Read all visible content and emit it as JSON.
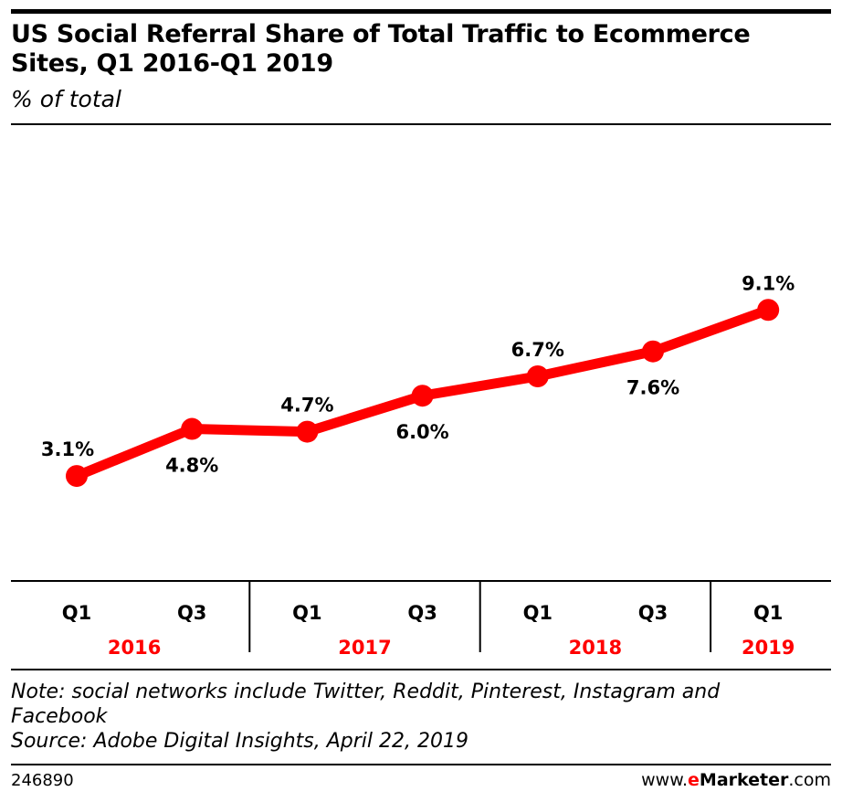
{
  "header": {
    "title": "US Social Referral Share of Total Traffic to Ecommerce Sites, Q1 2016-Q1 2019",
    "subtitle": "% of total"
  },
  "colors": {
    "accent": "#ff0000",
    "text": "#000000",
    "background": "#ffffff"
  },
  "chart_data": {
    "type": "line",
    "title": "US Social Referral Share of Total Traffic to Ecommerce Sites, Q1 2016-Q1 2019",
    "ylabel": "% of total",
    "xlabel": "",
    "categories": [
      "Q1",
      "Q3",
      "Q1",
      "Q3",
      "Q1",
      "Q3",
      "Q1"
    ],
    "year_groups": [
      {
        "year": "2016",
        "span": 2
      },
      {
        "year": "2017",
        "span": 2
      },
      {
        "year": "2018",
        "span": 2
      },
      {
        "year": "2019",
        "span": 1
      }
    ],
    "series": [
      {
        "name": "Social referral share",
        "values": [
          3.1,
          4.8,
          4.7,
          6.0,
          6.7,
          7.6,
          9.1
        ]
      }
    ],
    "data_labels": [
      "3.1%",
      "4.8%",
      "4.7%",
      "6.0%",
      "6.7%",
      "7.6%",
      "9.1%"
    ],
    "label_positions": [
      "above",
      "below",
      "above",
      "below",
      "above",
      "below",
      "above"
    ],
    "ylim": [
      0,
      10
    ],
    "grid": false,
    "legend": "none"
  },
  "footer": {
    "note": "Note: social networks include Twitter, Reddit, Pinterest, Instagram and Facebook",
    "source": "Source: Adobe Digital Insights, April 22, 2019",
    "chart_id": "246890",
    "brand_prefix": "www.",
    "brand_e": "e",
    "brand_name": "Marketer",
    "brand_suffix": ".com"
  }
}
